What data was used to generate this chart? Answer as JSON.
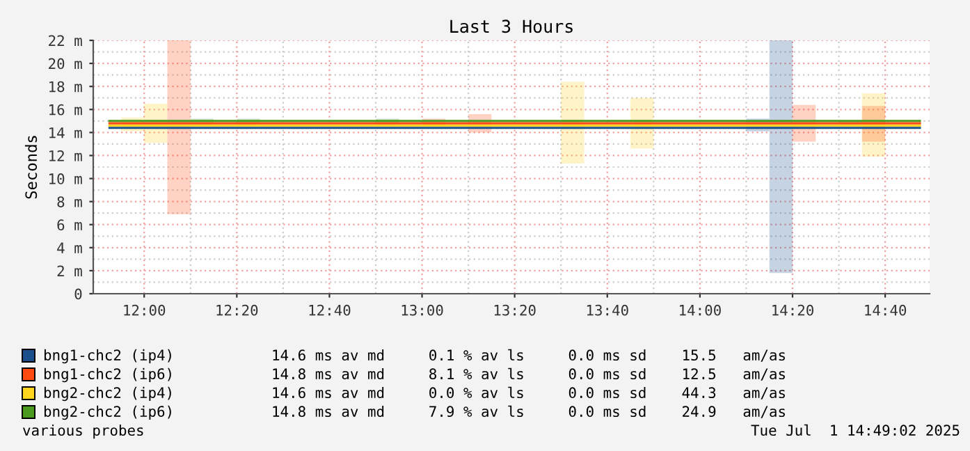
{
  "chart_data": {
    "type": "step",
    "title": "Last 3 Hours",
    "ylabel": "Seconds",
    "x": [
      11.875,
      11.9583,
      12.0417,
      12.125,
      12.2083,
      12.2917,
      12.375,
      12.4583,
      12.5417,
      12.625,
      12.7083,
      12.7917,
      12.875,
      12.9583,
      13.0417,
      13.125,
      13.2083,
      13.2917,
      13.375,
      13.4583,
      13.5417,
      13.625,
      13.7083,
      13.7917,
      13.875,
      13.9583,
      14.0417,
      14.125,
      14.2083,
      14.2917,
      14.375,
      14.4583,
      14.5417,
      14.625,
      14.7083,
      14.7917
    ],
    "series": [
      {
        "name": "bng1-chc2 (ip4)",
        "color": "#1b4f8c",
        "values": [
          14.4,
          14.4,
          14.4,
          14.4,
          14.4,
          14.4,
          14.4,
          14.4,
          14.4,
          14.4,
          14.4,
          14.4,
          14.4,
          14.4,
          14.4,
          14.4,
          14.4,
          14.4,
          14.4,
          14.4,
          14.4,
          14.4,
          14.4,
          14.4,
          14.4,
          14.4,
          14.4,
          14.4,
          14.4,
          14.4,
          14.4,
          14.4,
          14.4,
          14.4,
          14.4,
          14.4
        ],
        "lower": [
          14.4,
          14.4,
          14.4,
          14.4,
          14.4,
          14.4,
          14.4,
          14.4,
          14.4,
          14.4,
          14.4,
          14.4,
          14.4,
          14.4,
          14.4,
          14.4,
          14.4,
          14.4,
          14.4,
          14.4,
          14.4,
          14.4,
          14.4,
          14.4,
          14.4,
          14.4,
          14.4,
          14.4,
          14.1,
          1.8,
          14.4,
          14.4,
          14.4,
          14.4,
          14.4,
          14.4
        ],
        "upper": [
          14.4,
          14.4,
          14.4,
          14.4,
          14.4,
          14.4,
          14.4,
          14.4,
          14.4,
          14.4,
          14.4,
          14.4,
          14.4,
          14.4,
          14.4,
          14.4,
          14.4,
          14.4,
          14.4,
          14.4,
          14.4,
          14.4,
          14.4,
          14.4,
          14.4,
          14.4,
          14.4,
          14.4,
          15.2,
          22,
          14.4,
          14.4,
          14.4,
          14.4,
          14.4,
          14.4
        ]
      },
      {
        "name": "bng1-chc2 (ip6)",
        "color": "#ff4b12",
        "values": [
          14.8,
          14.8,
          14.8,
          14.8,
          14.8,
          14.8,
          14.8,
          14.8,
          14.8,
          14.8,
          14.8,
          14.8,
          14.8,
          14.8,
          14.8,
          14.8,
          14.8,
          14.8,
          14.8,
          14.8,
          14.8,
          14.8,
          14.8,
          14.8,
          14.8,
          14.8,
          14.8,
          14.8,
          14.8,
          14.8,
          14.8,
          14.8,
          14.8,
          14.8,
          14.8,
          14.8
        ],
        "lower": [
          14.8,
          14.8,
          14.8,
          6.9,
          14.8,
          14.8,
          14.8,
          14.8,
          14.8,
          14.8,
          14.8,
          14.8,
          14.8,
          14.8,
          14.5,
          14.8,
          14.0,
          14.8,
          14.8,
          14.8,
          14.8,
          14.8,
          14.8,
          14.8,
          14.8,
          14.8,
          14.8,
          14.8,
          14.8,
          14.8,
          13.2,
          14.8,
          14.8,
          13.2,
          14.8,
          14.8
        ],
        "upper": [
          14.8,
          14.8,
          14.8,
          22,
          14.8,
          14.8,
          14.8,
          14.8,
          14.8,
          14.8,
          14.8,
          14.8,
          14.8,
          14.8,
          15.2,
          14.8,
          15.6,
          14.8,
          14.8,
          14.8,
          14.8,
          14.8,
          14.8,
          14.8,
          14.8,
          14.8,
          14.8,
          14.8,
          14.8,
          14.8,
          16.4,
          14.8,
          14.8,
          16.3,
          14.8,
          14.8
        ]
      },
      {
        "name": "bng2-chc2 (ip4)",
        "color": "#ffd51e",
        "values": [
          14.6,
          14.6,
          14.6,
          14.6,
          14.6,
          14.6,
          14.6,
          14.6,
          14.6,
          14.6,
          14.6,
          14.6,
          14.6,
          14.6,
          14.6,
          14.6,
          14.6,
          14.6,
          14.6,
          14.6,
          14.6,
          14.6,
          14.6,
          14.6,
          14.6,
          14.6,
          14.6,
          14.6,
          14.6,
          14.6,
          14.6,
          14.6,
          14.6,
          14.6,
          14.6,
          14.6
        ],
        "lower": [
          14.6,
          14.1,
          13.1,
          14.6,
          14.6,
          14.6,
          14.6,
          14.6,
          14.6,
          14.6,
          14.6,
          14.6,
          14.6,
          14.6,
          14.6,
          14.6,
          14.6,
          14.6,
          14.6,
          14.6,
          11.3,
          14.6,
          14.6,
          12.6,
          14.6,
          14.6,
          14.6,
          14.6,
          14.6,
          14.6,
          14.6,
          14.6,
          14.6,
          11.9,
          14.6,
          14.6
        ],
        "upper": [
          14.6,
          15.3,
          16.5,
          14.6,
          14.6,
          14.6,
          14.6,
          14.6,
          14.6,
          14.6,
          14.6,
          14.6,
          14.6,
          14.6,
          14.6,
          14.6,
          14.6,
          14.6,
          14.6,
          14.6,
          18.4,
          14.6,
          14.6,
          17.0,
          14.6,
          14.6,
          14.6,
          14.6,
          14.6,
          14.6,
          14.6,
          14.6,
          14.6,
          17.4,
          14.6,
          14.6
        ]
      },
      {
        "name": "bng2-chc2 (ip6)",
        "color": "#4a9a20",
        "values": [
          15.0,
          15.0,
          15.0,
          15.0,
          15.0,
          15.0,
          15.0,
          15.0,
          15.0,
          15.0,
          15.0,
          15.0,
          15.0,
          15.0,
          15.0,
          15.0,
          15.0,
          15.0,
          15.0,
          15.0,
          15.0,
          15.0,
          15.0,
          15.0,
          15.0,
          15.0,
          15.0,
          15.0,
          15.0,
          15.0,
          15.0,
          15.0,
          15.0,
          15.0,
          15.0,
          15.0
        ],
        "lower": [
          15.0,
          15.0,
          15.0,
          15.0,
          14.5,
          15.0,
          14.6,
          15.0,
          15.0,
          15.0,
          15.0,
          15.0,
          14.5,
          15.0,
          15.0,
          15.0,
          15.0,
          15.0,
          15.0,
          15.0,
          15.0,
          15.0,
          15.0,
          15.0,
          15.0,
          15.0,
          15.0,
          15.0,
          15.0,
          15.0,
          15.0,
          15.0,
          14.5,
          15.0,
          15.0,
          15.0
        ],
        "upper": [
          15.0,
          15.0,
          15.0,
          15.0,
          15.2,
          15.0,
          15.2,
          15.0,
          15.0,
          15.0,
          15.0,
          15.0,
          15.2,
          15.0,
          15.0,
          15.0,
          15.0,
          15.0,
          15.0,
          15.0,
          15.0,
          15.0,
          15.0,
          15.0,
          15.0,
          15.0,
          15.0,
          15.0,
          15.0,
          15.0,
          15.0,
          15.0,
          15.0,
          15.0,
          15.0,
          15.0
        ]
      }
    ],
    "xlim": [
      11.8167,
      14.8267
    ],
    "xticks": [
      {
        "value": 12.0,
        "label": "12:00"
      },
      {
        "value": 12.3333,
        "label": "12:20"
      },
      {
        "value": 12.6667,
        "label": "12:40"
      },
      {
        "value": 13.0,
        "label": "13:00"
      },
      {
        "value": 13.3333,
        "label": "13:20"
      },
      {
        "value": 13.6667,
        "label": "13:40"
      },
      {
        "value": 14.0,
        "label": "14:00"
      },
      {
        "value": 14.3333,
        "label": "14:20"
      },
      {
        "value": 14.6667,
        "label": "14:40"
      }
    ],
    "ylim": [
      0,
      22
    ],
    "yticks": [
      0,
      {
        "value": 2,
        "label": "2 m"
      },
      {
        "value": 4,
        "label": "4 m"
      },
      {
        "value": 6,
        "label": "6 m"
      },
      {
        "value": 8,
        "label": "8 m"
      },
      {
        "value": 10,
        "label": "10 m"
      },
      {
        "value": 12,
        "label": "12 m"
      },
      {
        "value": 14,
        "label": "14 m"
      },
      {
        "value": 16,
        "label": "16 m"
      },
      {
        "value": 18,
        "label": "18 m"
      },
      {
        "value": 20,
        "label": "20 m"
      },
      {
        "value": 22,
        "label": "22 m"
      }
    ],
    "grid": true,
    "legend": "bottom",
    "annotations": [
      "14.6 ms av md     0.1 % av ls     0.0 ms sd    15.5   am/as",
      "14.8 ms av md     8.1 % av ls     0.0 ms sd    12.5   am/as",
      "14.6 ms av md     0.0 % av ls     0.0 ms sd    44.3   am/as",
      "14.8 ms av md     7.9 % av ls     0.0 ms sd    24.9   am/as",
      "various probes",
      "Tue Jul  1 14:49:02 2025"
    ]
  }
}
